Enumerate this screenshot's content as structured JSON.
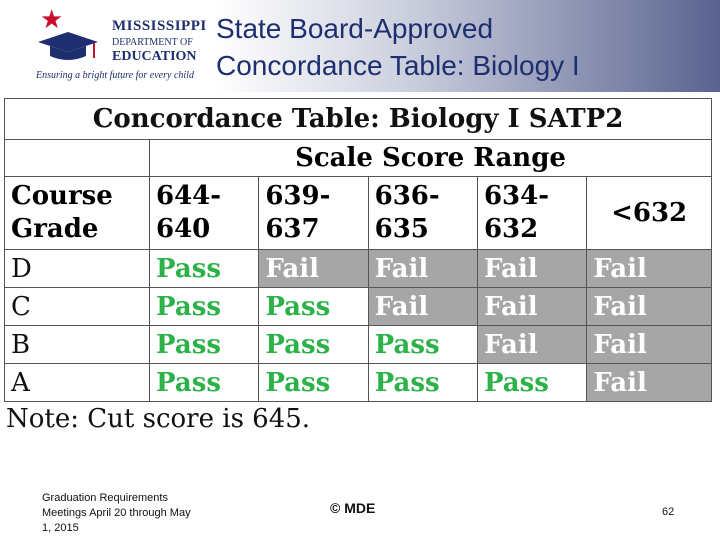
{
  "slide": {
    "title_line1": "State Board-Approved",
    "title_line2": "Concordance Table: Biology I"
  },
  "logo": {
    "line1": "MISSISSIPPI",
    "line2": "DEPARTMENT OF",
    "line3": "EDUCATION",
    "tagline": "Ensuring a bright future for every child"
  },
  "table": {
    "title": "Concordance Table: Biology I SATP2",
    "range_header": "Scale Score Range",
    "row_header_line1": "Course",
    "row_header_line2": "Grade",
    "columns": [
      {
        "line1": "644-",
        "line2": "640"
      },
      {
        "line1": "639-",
        "line2": "637"
      },
      {
        "line1": "636-",
        "line2": "635"
      },
      {
        "line1": "634-",
        "line2": "632"
      },
      {
        "line1": "<632",
        "line2": ""
      }
    ],
    "rows": [
      {
        "grade": "D",
        "cells": [
          "Pass",
          "Fail",
          "Fail",
          "Fail",
          "Fail"
        ]
      },
      {
        "grade": "C",
        "cells": [
          "Pass",
          "Pass",
          "Fail",
          "Fail",
          "Fail"
        ]
      },
      {
        "grade": "B",
        "cells": [
          "Pass",
          "Pass",
          "Pass",
          "Fail",
          "Fail"
        ]
      },
      {
        "grade": "A",
        "cells": [
          "Pass",
          "Pass",
          "Pass",
          "Pass",
          "Fail"
        ]
      }
    ]
  },
  "note": "Note: Cut score is 645.",
  "footer": {
    "left_line1": "Graduation Requirements",
    "left_line2": "Meetings April 20 through May",
    "left_line3": "1, 2015",
    "center": "© MDE",
    "page_number": "62"
  },
  "colors": {
    "pass": "#2db24a",
    "fail_bg": "#a6a6a6",
    "title_blue": "#1d2f6f",
    "logo_red": "#c8102e"
  }
}
